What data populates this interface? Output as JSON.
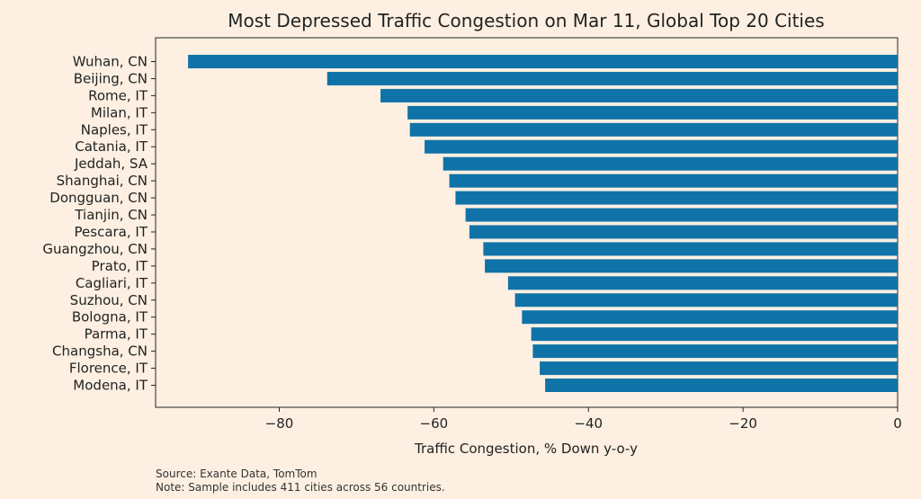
{
  "chart_data": {
    "type": "bar",
    "orientation": "horizontal",
    "title": "Most Depressed Traffic Congestion on Mar 11, Global Top 20 Cities",
    "xlabel": "Traffic Congestion, % Down y-o-y",
    "ylabel": "",
    "xlim": [
      -96,
      0
    ],
    "xticks": [
      -80,
      -60,
      -40,
      -20,
      0
    ],
    "grid": false,
    "legend": "none",
    "bar_color": "#0f73a8",
    "categories": [
      "Wuhan, CN",
      "Beijing, CN",
      "Rome, IT",
      "Milan, IT",
      "Naples, IT",
      "Catania, IT",
      "Jeddah, SA",
      "Shanghai, CN",
      "Dongguan, CN",
      "Tianjin, CN",
      "Pescara, IT",
      "Guangzhou, CN",
      "Prato, IT",
      "Cagliari, IT",
      "Suzhou, CN",
      "Bologna, IT",
      "Parma, IT",
      "Changsha, CN",
      "Florence, IT",
      "Modena, IT"
    ],
    "values": [
      -91.8,
      -73.8,
      -66.9,
      -63.4,
      -63.1,
      -61.2,
      -58.8,
      -58.0,
      -57.2,
      -55.9,
      -55.4,
      -53.6,
      -53.4,
      -50.4,
      -49.5,
      -48.6,
      -47.4,
      -47.2,
      -46.3,
      -45.6
    ]
  },
  "notes": {
    "source": "Source: Exante Data, TomTom",
    "sample": "Note: Sample includes 411 cities across 56 countries."
  },
  "colors": {
    "background": "#fdf0e2",
    "text": "#222222"
  }
}
